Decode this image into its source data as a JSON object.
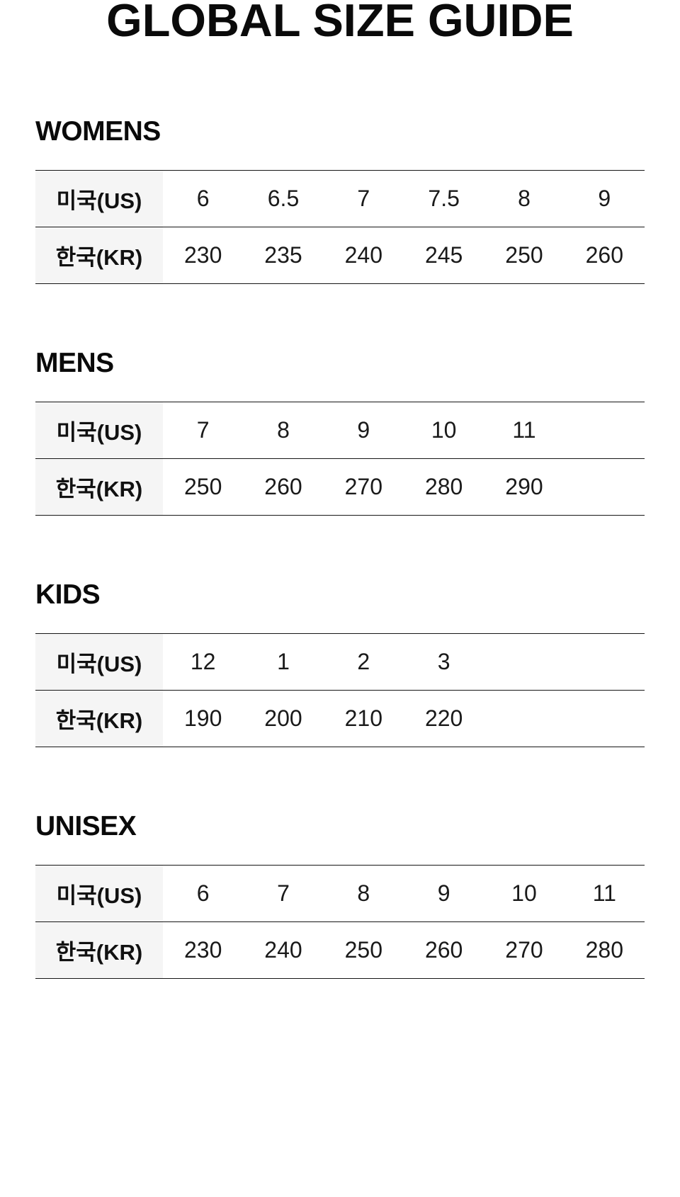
{
  "page_title": "GLOBAL SIZE GUIDE",
  "row_labels": {
    "us": "미국(US)",
    "kr": "한국(KR)"
  },
  "sections": [
    {
      "heading": "WOMENS",
      "us": [
        "6",
        "6.5",
        "7",
        "7.5",
        "8",
        "9"
      ],
      "kr": [
        "230",
        "235",
        "240",
        "245",
        "250",
        "260"
      ]
    },
    {
      "heading": "MENS",
      "us": [
        "7",
        "8",
        "9",
        "10",
        "11"
      ],
      "kr": [
        "250",
        "260",
        "270",
        "280",
        "290"
      ]
    },
    {
      "heading": "KIDS",
      "us": [
        "12",
        "1",
        "2",
        "3"
      ],
      "kr": [
        "190",
        "200",
        "210",
        "220"
      ]
    },
    {
      "heading": "UNISEX",
      "us": [
        "6",
        "7",
        "8",
        "9",
        "10",
        "11"
      ],
      "kr": [
        "230",
        "240",
        "250",
        "260",
        "270",
        "280"
      ]
    }
  ],
  "colors": {
    "page_background": "#ffffff",
    "label_cell_background": "#f5f5f5",
    "table_border": "#161616",
    "text": "#111111"
  }
}
